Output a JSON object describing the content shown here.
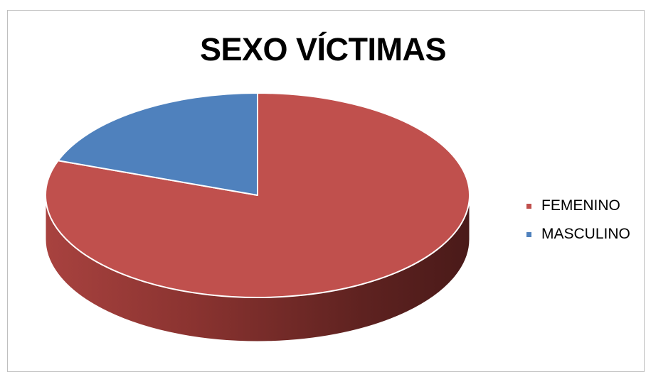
{
  "chart_data": {
    "type": "pie",
    "title": "SEXO VÍCTIMAS",
    "legend_position": "right",
    "three_d": true,
    "series": [
      {
        "name": "",
        "slices": [
          {
            "label": "FEMENINO",
            "value": 80.5,
            "color": "#c0504d"
          },
          {
            "label": "MASCULINO",
            "value": 19.5,
            "color": "#4f81bd"
          }
        ]
      }
    ]
  }
}
